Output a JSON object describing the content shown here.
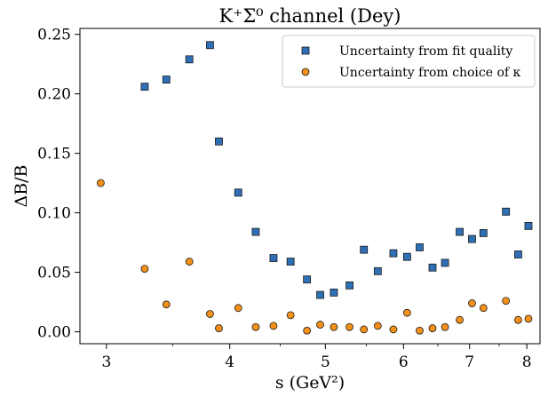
{
  "chart_data": {
    "type": "scatter",
    "title": "K⁺Σ⁰ channel (Dey)",
    "xlabel": "s (GeV²)",
    "ylabel": "ΔB/B",
    "xscale": "log",
    "xlim": [
      2.82,
      8.25
    ],
    "ylim": [
      -0.01,
      0.255
    ],
    "xticks": [
      3,
      4,
      5,
      6,
      7,
      8
    ],
    "xtick_labels": [
      "3",
      "4",
      "5",
      "6",
      "7",
      "8"
    ],
    "yticks": [
      0.0,
      0.05,
      0.1,
      0.15,
      0.2,
      0.25
    ],
    "ytick_labels": [
      "0.00",
      "0.05",
      "0.10",
      "0.15",
      "0.20",
      "0.25"
    ],
    "grid": false,
    "legend_position": "top-right",
    "colors": {
      "fit": "#2f6fb5",
      "kappa": "#f39019",
      "edge": "#1a1a1a"
    },
    "series": [
      {
        "name": "Uncertainty from fit quality",
        "marker": "square",
        "x": [
          3.28,
          3.45,
          3.64,
          3.82,
          3.9,
          4.08,
          4.25,
          4.43,
          4.61,
          4.79,
          4.94,
          5.1,
          5.29,
          5.47,
          5.65,
          5.86,
          6.05,
          6.23,
          6.42,
          6.61,
          6.84,
          7.04,
          7.23,
          7.62,
          7.84,
          8.03
        ],
        "y": [
          0.206,
          0.212,
          0.229,
          0.241,
          0.16,
          0.117,
          0.084,
          0.062,
          0.059,
          0.044,
          0.031,
          0.033,
          0.039,
          0.069,
          0.051,
          0.066,
          0.063,
          0.071,
          0.054,
          0.058,
          0.084,
          0.078,
          0.083,
          0.101,
          0.065,
          0.089
        ]
      },
      {
        "name": "Uncertainty from choice of κ",
        "marker": "circle",
        "x": [
          2.96,
          3.28,
          3.45,
          3.64,
          3.82,
          3.9,
          4.08,
          4.25,
          4.43,
          4.61,
          4.79,
          4.94,
          5.1,
          5.29,
          5.47,
          5.65,
          5.86,
          6.05,
          6.23,
          6.42,
          6.61,
          6.84,
          7.04,
          7.23,
          7.62,
          7.84,
          8.03
        ],
        "y": [
          0.125,
          0.053,
          0.023,
          0.059,
          0.015,
          0.003,
          0.02,
          0.004,
          0.005,
          0.014,
          0.001,
          0.006,
          0.004,
          0.004,
          0.002,
          0.005,
          0.002,
          0.016,
          0.001,
          0.003,
          0.004,
          0.01,
          0.024,
          0.02,
          0.026,
          0.01,
          0.011
        ]
      }
    ]
  }
}
